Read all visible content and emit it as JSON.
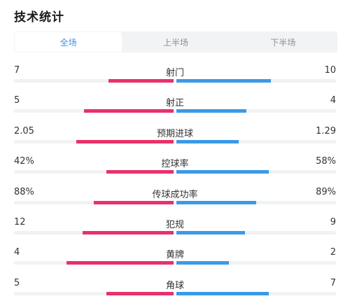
{
  "page": {
    "title": "技术统计"
  },
  "tabs": [
    {
      "label": "全场",
      "active": true
    },
    {
      "label": "上半场",
      "active": false
    },
    {
      "label": "下半场",
      "active": false
    }
  ],
  "colors": {
    "home": "#e8316a",
    "away": "#3b9ae6",
    "active_tab": "#3e8de6"
  },
  "stats": [
    {
      "label": "射门",
      "home": "7",
      "away": "10",
      "home_ratio": 0.41,
      "away_ratio": 0.59
    },
    {
      "label": "射正",
      "home": "5",
      "away": "4",
      "home_ratio": 0.56,
      "away_ratio": 0.44
    },
    {
      "label": "预期进球",
      "home": "2.05",
      "away": "1.29",
      "home_ratio": 0.61,
      "away_ratio": 0.39
    },
    {
      "label": "控球率",
      "home": "42%",
      "away": "58%",
      "home_ratio": 0.42,
      "away_ratio": 0.58
    },
    {
      "label": "传球成功率",
      "home": "88%",
      "away": "89%",
      "home_ratio": 0.5,
      "away_ratio": 0.5
    },
    {
      "label": "犯规",
      "home": "12",
      "away": "9",
      "home_ratio": 0.57,
      "away_ratio": 0.43
    },
    {
      "label": "黄牌",
      "home": "4",
      "away": "2",
      "home_ratio": 0.67,
      "away_ratio": 0.33
    },
    {
      "label": "角球",
      "home": "5",
      "away": "7",
      "home_ratio": 0.42,
      "away_ratio": 0.58
    }
  ]
}
